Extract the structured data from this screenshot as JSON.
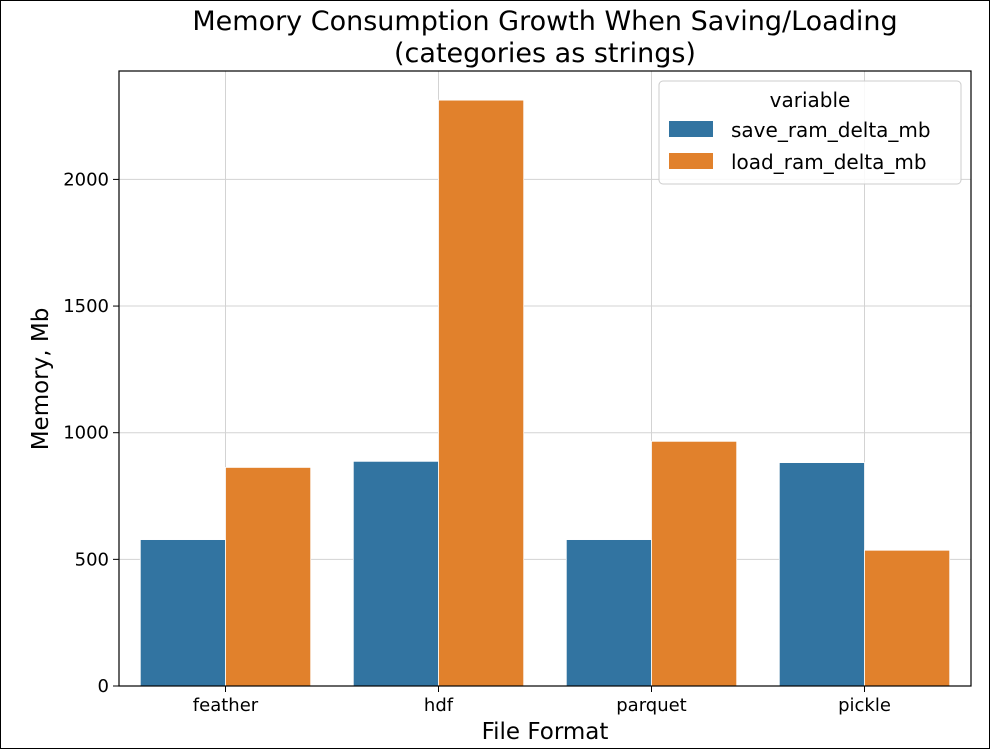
{
  "chart_data": {
    "type": "bar",
    "title": "Memory Consumption Growth When Saving/Loading",
    "subtitle": "(categories as strings)",
    "xlabel": "File Format",
    "ylabel": "Memory, Mb",
    "categories": [
      "feather",
      "hdf",
      "parquet",
      "pickle"
    ],
    "series": [
      {
        "name": "save_ram_delta_mb",
        "color": "#3274a1",
        "values": [
          578,
          887,
          578,
          882
        ]
      },
      {
        "name": "load_ram_delta_mb",
        "color": "#e1812c",
        "values": [
          863,
          2313,
          966,
          536
        ]
      }
    ],
    "ylim": [
      0,
      2428
    ],
    "yticks": [
      0,
      500,
      1000,
      1500,
      2000
    ],
    "grid": true,
    "legend": {
      "title": "variable",
      "placement": "top-right"
    }
  }
}
